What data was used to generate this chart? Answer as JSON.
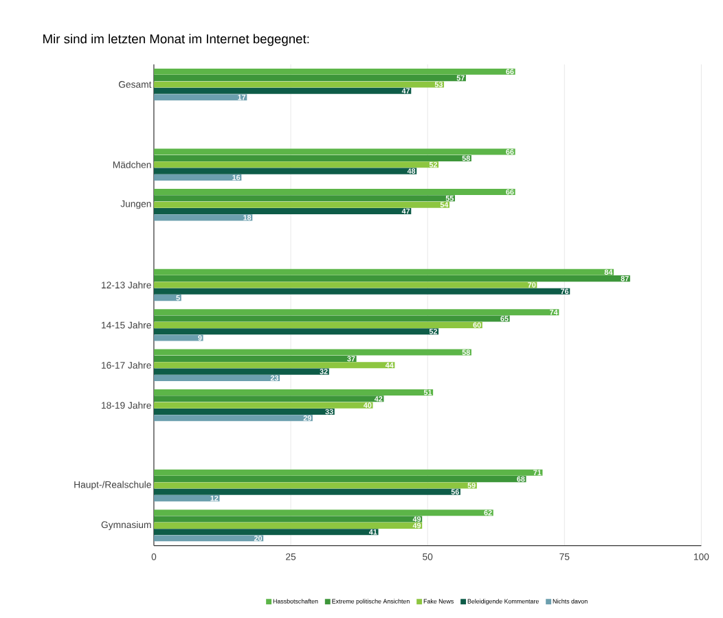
{
  "chart_data": {
    "type": "bar",
    "orientation": "horizontal",
    "title": "Mir sind im letzten Monat im Internet begegnet:",
    "categories": [
      "Gesamt",
      null,
      "Mädchen",
      "Jungen",
      null,
      "12-13 Jahre",
      "14-15 Jahre",
      "16-17 Jahre",
      "18-19 Jahre",
      null,
      "Haupt-/Realschule",
      "Gymnasium"
    ],
    "series": [
      {
        "name": "Hassbotschaften",
        "color": "#5cb548",
        "values": [
          66,
          null,
          66,
          66,
          null,
          84,
          74,
          58,
          51,
          null,
          71,
          62
        ]
      },
      {
        "name": "Extreme politische  Ansichten",
        "color": "#3d963a",
        "values": [
          57,
          null,
          58,
          55,
          null,
          87,
          65,
          37,
          42,
          null,
          68,
          49
        ]
      },
      {
        "name": "Fake News",
        "color": "#8dc640",
        "values": [
          53,
          null,
          52,
          54,
          null,
          70,
          60,
          44,
          40,
          null,
          59,
          49
        ]
      },
      {
        "name": "Beleidigende  Kommentare",
        "color": "#0e5c48",
        "values": [
          47,
          null,
          48,
          47,
          null,
          76,
          52,
          32,
          33,
          null,
          56,
          41
        ]
      },
      {
        "name": "Nichts  davon",
        "color": "#6c9fae",
        "values": [
          17,
          null,
          16,
          18,
          null,
          5,
          9,
          23,
          29,
          null,
          12,
          20
        ]
      }
    ],
    "xlim": [
      0,
      100
    ],
    "xticks": [
      0,
      25,
      50,
      75,
      100
    ],
    "grid": "x",
    "data_labels": true,
    "legend": "bottom"
  }
}
